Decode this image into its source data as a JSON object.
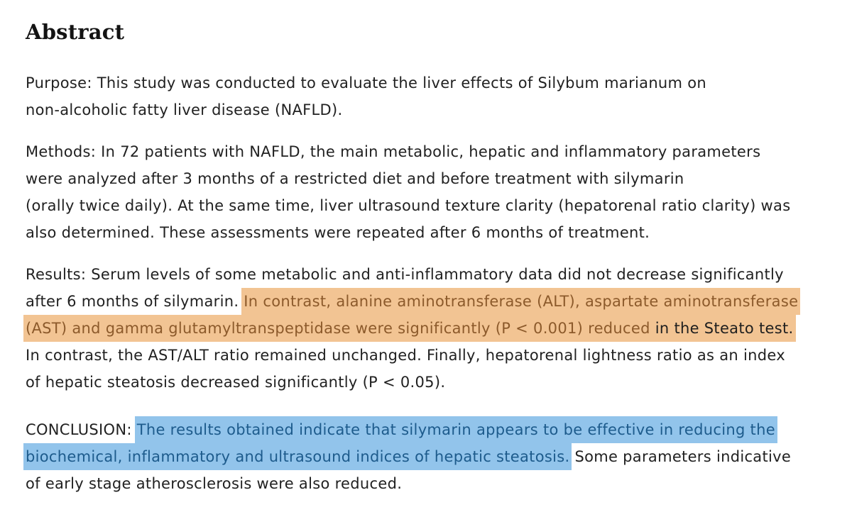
{
  "colors": {
    "page_background": "#ffffff",
    "body_text": "#212121",
    "heading_text": "#131313",
    "highlight_orange_background": "#f2c493",
    "highlight_orange_text": "#8c5a2b",
    "highlight_blue_background": "#92c4eb",
    "highlight_blue_text": "#1d5b8c"
  },
  "abstract": {
    "heading": "Abstract",
    "paragraphs": [
      {
        "name": "purpose",
        "lines": [
          [
            {
              "t": "Purpose: This study was conducted to evaluate the liver effects of Silybum marianum on",
              "s": "plain"
            }
          ],
          [
            {
              "t": "non-alcoholic fatty liver disease (NAFLD).",
              "s": "plain"
            }
          ]
        ]
      },
      {
        "name": "methods",
        "lines": [
          [
            {
              "t": "Methods: In 72 patients with NAFLD, the main metabolic, hepatic and inflammatory parameters",
              "s": "plain"
            }
          ],
          [
            {
              "t": "were analyzed after 3 months of a restricted diet and before treatment with silymarin",
              "s": "plain"
            }
          ],
          [
            {
              "t": "(orally twice daily). At the same time, liver ultrasound texture clarity (hepatorenal ratio clarity) was",
              "s": "plain"
            }
          ],
          [
            {
              "t": "also determined. These assessments were repeated after 6 months of treatment.",
              "s": "plain"
            }
          ]
        ]
      },
      {
        "name": "results",
        "lines": [
          [
            {
              "t": "Results: Serum levels of some metabolic and anti-inflammatory data did not decrease significantly",
              "s": "plain"
            }
          ],
          [
            {
              "t": "after 6 months of silymarin. ",
              "s": "plain"
            },
            {
              "t": "In contrast, alanine aminotransferase (ALT), aspartate aminotransferase",
              "s": "orange"
            }
          ],
          [
            {
              "t": "(AST) and gamma glutamyltranspeptidase were significantly (P < 0.001) reduced ",
              "s": "orange"
            },
            {
              "t": "in the Steato test.",
              "s": "orange-plain"
            }
          ],
          [
            {
              "t": "In contrast, the AST/ALT ratio remained unchanged. Finally, hepatorenal lightness ratio as an index",
              "s": "plain"
            }
          ],
          [
            {
              "t": "of hepatic steatosis decreased significantly (P < 0.05).",
              "s": "plain"
            }
          ]
        ]
      },
      {
        "name": "conclusion",
        "lines": [
          [
            {
              "t": "CONCLUSION: ",
              "s": "plain"
            },
            {
              "t": "The results obtained indicate that silymarin appears to be effective in reducing the",
              "s": "blue"
            }
          ],
          [
            {
              "t": "biochemical, inflammatory and ultrasound indices of hepatic steatosis.",
              "s": "blue"
            },
            {
              "t": " Some parameters indicative",
              "s": "plain"
            }
          ],
          [
            {
              "t": "of early stage atherosclerosis were also reduced.",
              "s": "plain"
            }
          ]
        ]
      }
    ]
  }
}
